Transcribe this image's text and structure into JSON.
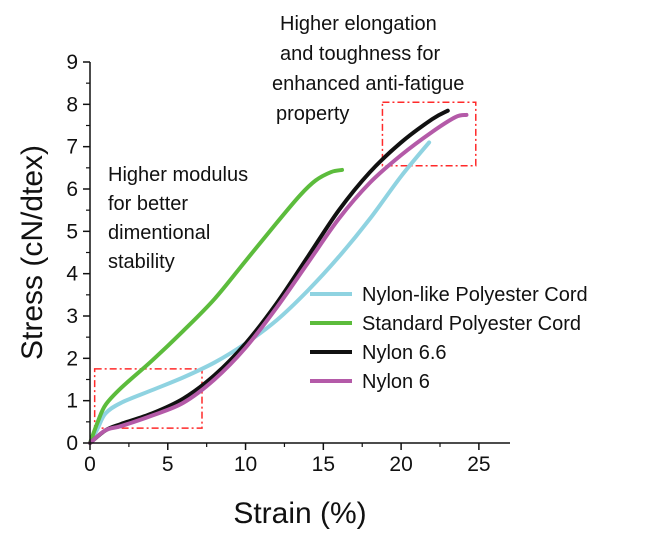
{
  "chart_data": {
    "type": "line",
    "xlabel": "Strain (%)",
    "ylabel": "Stress (cN/dtex)",
    "xlim": [
      0,
      27
    ],
    "ylim": [
      0,
      9
    ],
    "x_ticks": [
      0,
      5,
      10,
      15,
      20,
      25
    ],
    "y_ticks": [
      0,
      1,
      2,
      3,
      4,
      5,
      6,
      7,
      8,
      9
    ],
    "grid": false,
    "legend_placement": "center-right",
    "series": [
      {
        "name": "Nylon-like Polyester Cord",
        "color": "#8fd3e1",
        "points": [
          [
            0,
            0
          ],
          [
            0.5,
            0.35
          ],
          [
            1,
            0.7
          ],
          [
            2,
            0.95
          ],
          [
            4,
            1.25
          ],
          [
            6,
            1.55
          ],
          [
            8,
            1.9
          ],
          [
            10,
            2.35
          ],
          [
            12,
            2.9
          ],
          [
            14,
            3.6
          ],
          [
            16,
            4.4
          ],
          [
            18,
            5.3
          ],
          [
            20,
            6.3
          ],
          [
            21.8,
            7.1
          ]
        ]
      },
      {
        "name": "Standard Polyester Cord",
        "color": "#5cbc3c",
        "points": [
          [
            0,
            0
          ],
          [
            0.5,
            0.5
          ],
          [
            1,
            0.9
          ],
          [
            2,
            1.3
          ],
          [
            4,
            1.95
          ],
          [
            6,
            2.65
          ],
          [
            8,
            3.4
          ],
          [
            10,
            4.3
          ],
          [
            12,
            5.2
          ],
          [
            13.5,
            5.85
          ],
          [
            14.5,
            6.2
          ],
          [
            15.5,
            6.4
          ],
          [
            16.2,
            6.45
          ]
        ]
      },
      {
        "name": "Nylon 6.6",
        "color": "#111111",
        "points": [
          [
            0,
            0
          ],
          [
            1,
            0.3
          ],
          [
            2,
            0.45
          ],
          [
            4,
            0.7
          ],
          [
            6,
            1.05
          ],
          [
            8,
            1.6
          ],
          [
            10,
            2.35
          ],
          [
            12,
            3.3
          ],
          [
            14,
            4.4
          ],
          [
            16,
            5.5
          ],
          [
            18,
            6.4
          ],
          [
            20,
            7.1
          ],
          [
            22,
            7.65
          ],
          [
            23,
            7.85
          ]
        ]
      },
      {
        "name": "Nylon 6",
        "color": "#b45aa8",
        "points": [
          [
            0,
            0
          ],
          [
            1,
            0.3
          ],
          [
            2,
            0.4
          ],
          [
            4,
            0.65
          ],
          [
            6,
            0.95
          ],
          [
            8,
            1.5
          ],
          [
            10,
            2.25
          ],
          [
            12,
            3.2
          ],
          [
            14,
            4.25
          ],
          [
            16,
            5.3
          ],
          [
            18,
            6.15
          ],
          [
            20,
            6.8
          ],
          [
            22,
            7.35
          ],
          [
            23.5,
            7.7
          ],
          [
            24.2,
            7.75
          ]
        ]
      }
    ],
    "annotations": {
      "left": [
        "Higher modulus",
        "for better",
        "dimentional",
        "stability"
      ],
      "top": [
        "Higher elongation",
        "and toughness for",
        "enhanced anti-fatigue",
        "property"
      ]
    },
    "highlight_boxes": [
      {
        "x": [
          0.3,
          7.2
        ],
        "y": [
          0.35,
          1.75
        ],
        "color": "#ff2a2a"
      },
      {
        "x": [
          18.8,
          24.8
        ],
        "y": [
          6.55,
          8.05
        ],
        "color": "#ff2a2a"
      }
    ]
  }
}
